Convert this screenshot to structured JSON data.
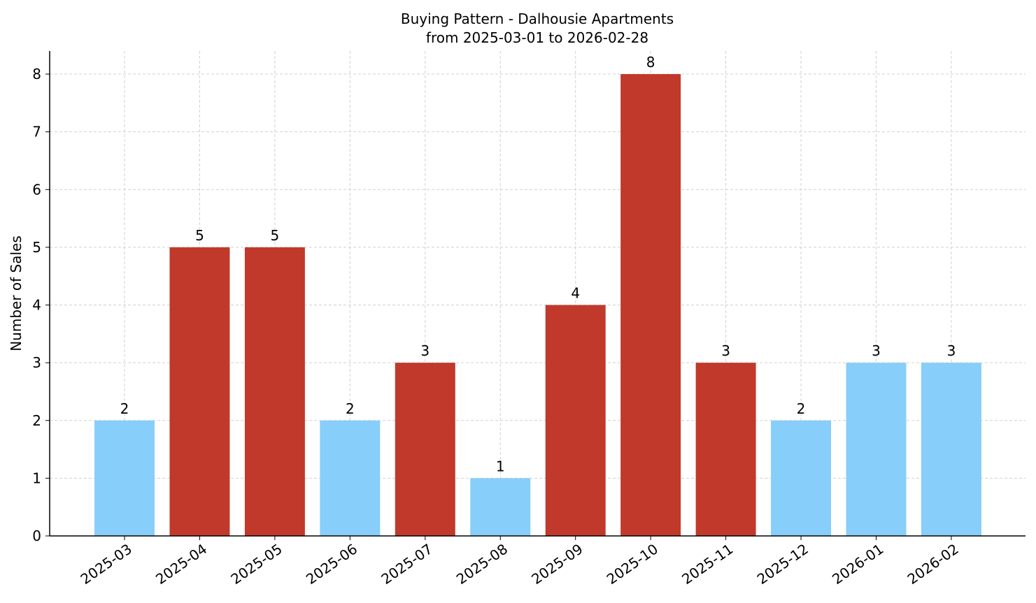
{
  "chart_data": {
    "type": "bar",
    "title": "Buying Pattern - Dalhousie Apartments",
    "subtitle": "from 2025-03-01 to 2026-02-28",
    "y_label": "Number of Sales",
    "categories": [
      "2025-03",
      "2025-04",
      "2025-05",
      "2025-06",
      "2025-07",
      "2025-08",
      "2025-09",
      "2025-10",
      "2025-11",
      "2025-12",
      "2026-01",
      "2026-02"
    ],
    "values": [
      2,
      5,
      5,
      2,
      3,
      1,
      4,
      8,
      3,
      2,
      3,
      3
    ],
    "colors": [
      "#87cefa",
      "#c0392b",
      "#c0392b",
      "#87cefa",
      "#c0392b",
      "#87cefa",
      "#c0392b",
      "#c0392b",
      "#c0392b",
      "#87cefa",
      "#87cefa",
      "#87cefa"
    ],
    "ylim": [
      0,
      8.4
    ],
    "yticks": [
      0,
      1,
      2,
      3,
      4,
      5,
      6,
      7,
      8
    ],
    "grid": true
  }
}
